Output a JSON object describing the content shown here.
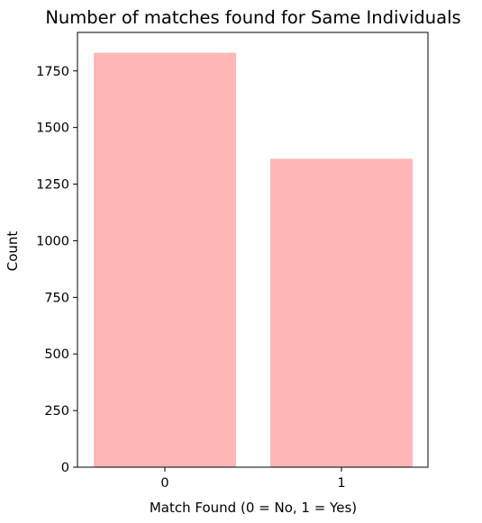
{
  "chart_data": {
    "type": "bar",
    "title": "Number of matches found for Same Individuals",
    "xlabel": "Match Found (0 = No, 1 = Yes)",
    "ylabel": "Count",
    "categories": [
      "0",
      "1"
    ],
    "values": [
      1830,
      1362
    ],
    "ylim": [
      0,
      1920
    ],
    "yticks": [
      0,
      250,
      500,
      750,
      1000,
      1250,
      1500,
      1750
    ],
    "grid": false,
    "bar_color": "#ffb6b6",
    "axis_color": "#000000"
  }
}
